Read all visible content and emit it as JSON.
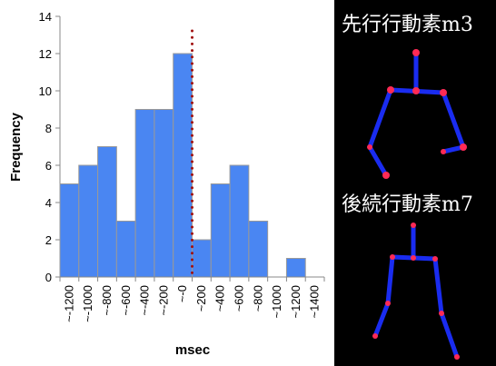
{
  "chart_data": {
    "type": "bar",
    "categories": [
      "~-1200",
      "~-1000",
      "~-800",
      "~-600",
      "~-400",
      "~-200",
      "~-0",
      "~200",
      "~400",
      "~600",
      "~800",
      "~1000",
      "~1200",
      "~1400"
    ],
    "values": [
      5,
      6,
      7,
      3,
      9,
      9,
      12,
      2,
      5,
      6,
      3,
      0,
      1,
      0
    ],
    "color": "#4a86f2",
    "x_label": "msec",
    "y_label": "Frequency",
    "ylim": [
      0,
      14
    ],
    "yticks": [
      0,
      2,
      4,
      6,
      8,
      10,
      12,
      14
    ]
  },
  "panel": {
    "labels": [
      "先行行動素m3",
      "後続行動素m7"
    ]
  }
}
